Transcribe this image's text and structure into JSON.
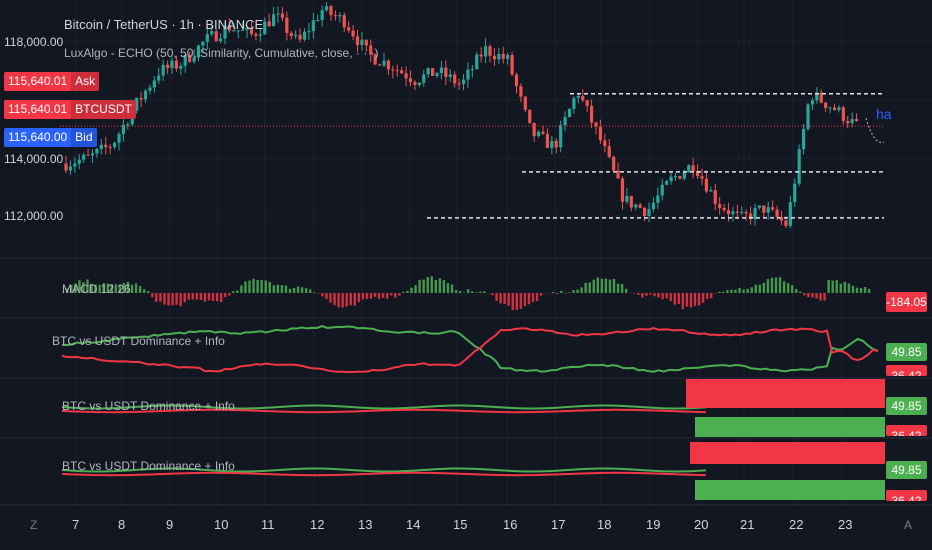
{
  "header": {
    "symbol_title": "Bitcoin / TetherUS · 1h · BINANCE",
    "indicator_title": "LuxAlgo - ECHO (50, 50, Similarity, Cumulative, close, · · ·)"
  },
  "price_tags": [
    {
      "value": "115,640.01",
      "name": "Ask",
      "color": "#f23645"
    },
    {
      "value": "115,640.01",
      "name": "BTCUSDT",
      "color": "#f23645"
    },
    {
      "value": "115,640.00",
      "name": "Bid",
      "color": "#2962ff"
    }
  ],
  "axis": {
    "y_ticks": [
      "118,000.00",
      "114,000.00",
      "112,000.00"
    ],
    "x_ticks": [
      "7",
      "8",
      "9",
      "10",
      "11",
      "12",
      "13",
      "14",
      "15",
      "16",
      "17",
      "18",
      "19",
      "20",
      "21",
      "22",
      "23"
    ],
    "corner_left": "Z",
    "corner_right": "A"
  },
  "panes": {
    "macd": {
      "title": "MACD 12 26",
      "value_tag": "-184.05",
      "tag_color": "#f23645"
    },
    "dominance": [
      {
        "title": "BTC vs USDT Dominance + Info",
        "tags": [
          "49.85",
          "36.42"
        ]
      },
      {
        "title": "BTC vs USDT Dominance + Info",
        "tags": [
          "49.85",
          "36.42"
        ]
      },
      {
        "title": "BTC vs USDT Dominance + Info",
        "tags": [
          "49.85",
          "36.42"
        ]
      }
    ],
    "fragment_text": "ha"
  },
  "colors": {
    "bull": "#26a69a",
    "bear": "#ef5350",
    "green": "#4caf50",
    "red": "#f23645",
    "background": "#131722",
    "grid": "#1e222d"
  },
  "chart_data": {
    "type": "candlestick",
    "title": "Bitcoin / TetherUS · 1h · BINANCE",
    "x": [
      "7",
      "8",
      "9",
      "10",
      "11",
      "12",
      "13",
      "14",
      "15",
      "16",
      "17",
      "18",
      "19",
      "20",
      "21",
      "22",
      "23"
    ],
    "close_path": [
      114300,
      114500,
      115000,
      116400,
      117600,
      117900,
      118700,
      119200,
      118900,
      119600,
      118600,
      119800,
      119400,
      118200,
      117800,
      117300,
      117600,
      117100,
      118400,
      118000,
      115400,
      114900,
      116900,
      115100,
      113000,
      112600,
      113700,
      114300,
      112900,
      112300,
      112700,
      112100,
      116800,
      116300,
      115640
    ],
    "ylim": [
      111200,
      119800
    ],
    "y_ticks": [
      112000,
      114000,
      118000
    ],
    "last_price": 115640.01,
    "levels": [
      116800,
      114000,
      112350
    ],
    "series": [
      {
        "name": "MACD 12 26",
        "type": "histogram",
        "last": -184.05
      },
      {
        "name": "BTC vs USDT Dominance + Info",
        "values_last": [
          49.85,
          36.42
        ]
      }
    ]
  }
}
